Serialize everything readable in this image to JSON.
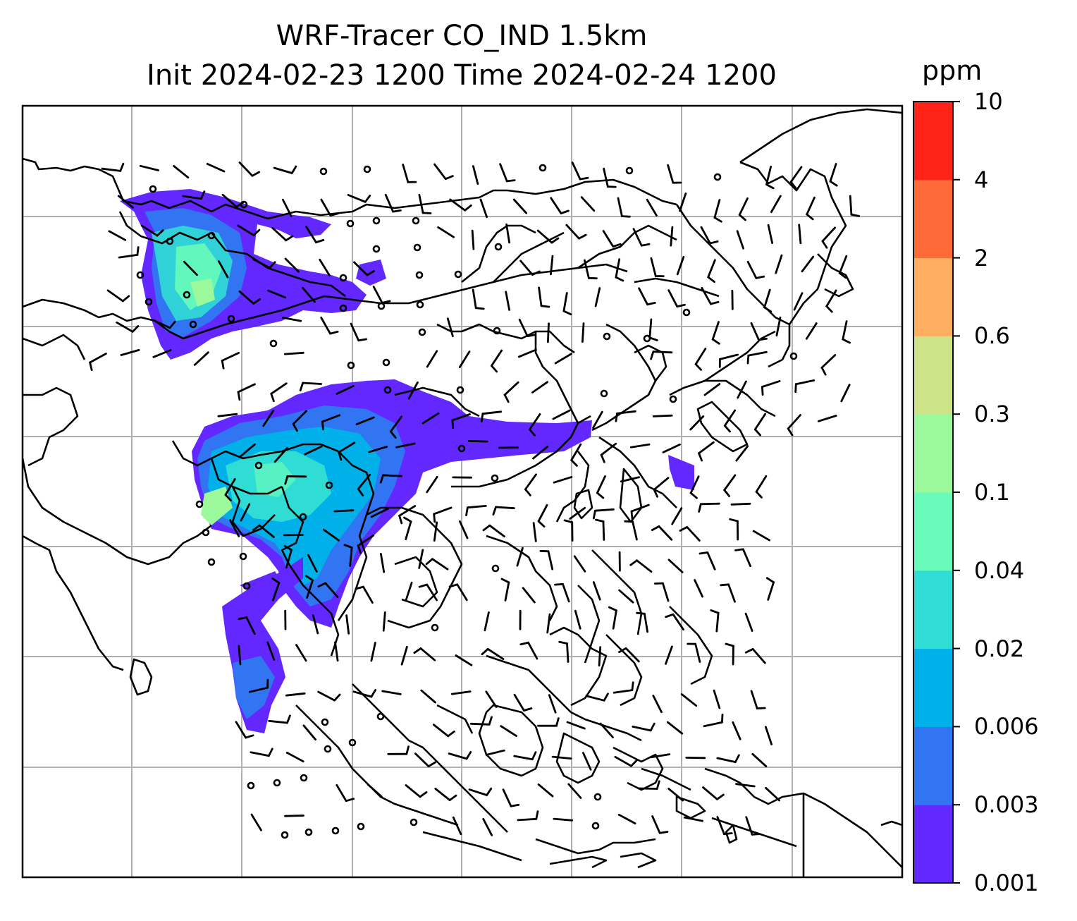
{
  "title": {
    "line1": "WRF-Tracer CO_IND 1.5km",
    "line2": "Init 2024-02-23 1200 Time 2024-02-24 1200"
  },
  "colorbar": {
    "label": "ppm",
    "levels": [
      "0.001",
      "0.003",
      "0.006",
      "0.02",
      "0.04",
      "0.1",
      "0.3",
      "0.6",
      "2",
      "4",
      "10"
    ],
    "colors": [
      "#6327ff",
      "#3275f3",
      "#00b1e9",
      "#30ddd5",
      "#68fbba",
      "#9bf99c",
      "#cde388",
      "#ffaf61",
      "#fe6b38",
      "#ff2417"
    ]
  },
  "map": {
    "gridlines": true,
    "features": [
      "coastlines",
      "borders",
      "wind-barbs",
      "calm-wind-circles",
      "tracer-plume"
    ]
  }
}
